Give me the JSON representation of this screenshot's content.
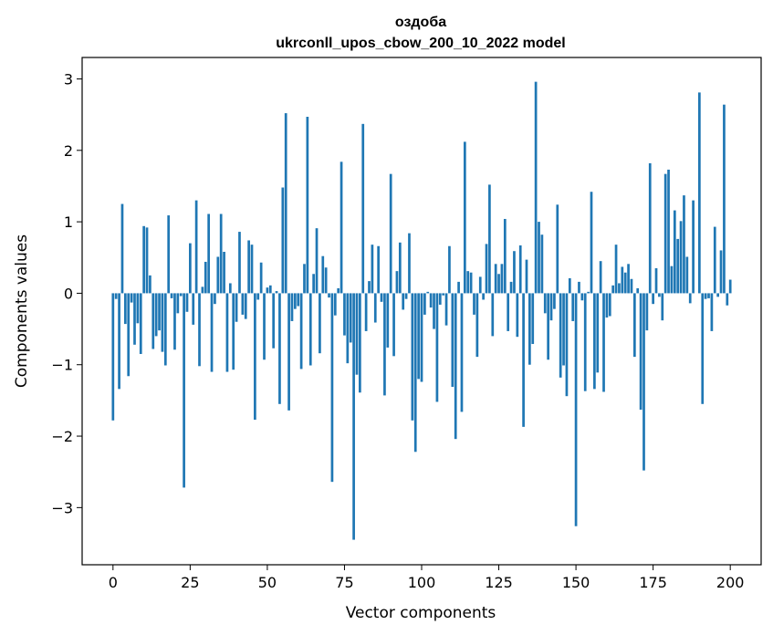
{
  "chart_data": {
    "type": "bar",
    "title": "оздоба",
    "subtitle": "ukrconll_upos_cbow_200_10_2022 model",
    "xlabel": "Vector components",
    "ylabel": "Components values",
    "xlim": [
      -10,
      210
    ],
    "ylim": [
      -3.8,
      3.3
    ],
    "xticks": [
      0,
      25,
      50,
      75,
      100,
      125,
      150,
      175,
      200
    ],
    "yticks": [
      -3,
      -2,
      -1,
      0,
      1,
      2,
      3
    ],
    "bar_color": "#1f77b4",
    "values": [
      -1.78,
      -0.08,
      -1.34,
      1.25,
      -0.43,
      -1.16,
      -0.13,
      -0.72,
      -0.42,
      -0.85,
      0.94,
      0.92,
      0.25,
      -0.78,
      -0.6,
      -0.52,
      -0.82,
      -1.01,
      1.09,
      -0.07,
      -0.79,
      -0.28,
      -0.04,
      -2.72,
      -0.26,
      0.7,
      -0.44,
      1.3,
      -1.02,
      0.09,
      0.44,
      1.11,
      -1.1,
      -0.15,
      0.51,
      1.11,
      0.58,
      -1.1,
      0.14,
      -1.07,
      -0.4,
      0.86,
      -0.3,
      -0.36,
      0.74,
      0.68,
      -1.77,
      -0.09,
      0.43,
      -0.93,
      0.08,
      0.11,
      -0.77,
      0.03,
      -1.55,
      1.48,
      2.52,
      -1.64,
      -0.39,
      -0.22,
      -0.18,
      -1.06,
      0.41,
      2.47,
      -1.01,
      0.27,
      0.91,
      -0.84,
      0.52,
      0.36,
      -0.06,
      -2.64,
      -0.31,
      0.07,
      1.84,
      -0.59,
      -0.98,
      -0.69,
      -3.45,
      -1.14,
      -1.39,
      2.37,
      -0.53,
      0.17,
      0.68,
      -0.41,
      0.66,
      -0.12,
      -1.43,
      -0.76,
      1.67,
      -0.88,
      0.31,
      0.71,
      -0.23,
      -0.08,
      0.84,
      -1.78,
      -2.22,
      -1.2,
      -1.24,
      -0.3,
      0.02,
      -0.2,
      -0.5,
      -1.52,
      -0.16,
      -0.03,
      -0.45,
      0.66,
      -1.31,
      -2.04,
      0.16,
      -1.66,
      2.12,
      0.31,
      0.29,
      -0.3,
      -0.89,
      0.23,
      -0.09,
      0.69,
      1.52,
      -0.6,
      0.41,
      0.27,
      0.41,
      1.04,
      -0.53,
      0.16,
      0.59,
      -0.61,
      0.67,
      -1.87,
      0.47,
      -1.0,
      -0.71,
      2.96,
      1.0,
      0.82,
      -0.28,
      -0.93,
      -0.38,
      -0.22,
      1.24,
      -1.18,
      -1.01,
      -1.44,
      0.21,
      -0.39,
      -3.26,
      0.16,
      -0.1,
      -1.37,
      0.02,
      1.42,
      -1.34,
      -1.11,
      0.45,
      -1.38,
      -0.34,
      -0.32,
      0.11,
      0.68,
      0.14,
      0.37,
      0.29,
      0.41,
      0.2,
      -0.89,
      0.07,
      -1.63,
      -2.48,
      -0.52,
      1.82,
      -0.15,
      0.35,
      -0.05,
      -0.38,
      1.67,
      1.73,
      0.38,
      1.16,
      0.76,
      1.01,
      1.37,
      0.51,
      -0.14,
      1.3,
      0.0,
      2.81,
      -1.55,
      -0.08,
      -0.07,
      -0.53,
      0.93,
      -0.05,
      0.6,
      2.64,
      -0.17,
      0.19
    ]
  }
}
